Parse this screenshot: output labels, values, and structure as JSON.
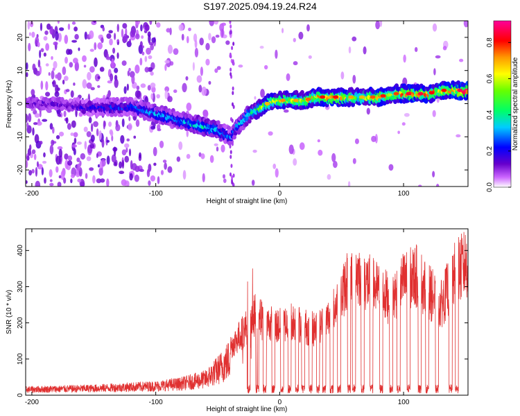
{
  "title": "S197.2025.094.19.24.R24",
  "spectrogram": {
    "xlabel": "Height of straight line (km)",
    "ylabel": "Frequency (Hz)",
    "xlim": [
      -205,
      152
    ],
    "ylim": [
      -25,
      25
    ],
    "xticks": [
      -200,
      -100,
      0,
      100
    ],
    "yticks": [
      -20,
      -10,
      0,
      10,
      20
    ],
    "colorbar": {
      "label": "Normalized spectral amplitude",
      "range": [
        0,
        0.92
      ],
      "ticks": [
        0.0,
        0.2,
        0.4,
        0.6,
        0.8
      ]
    }
  },
  "chart_data": [
    {
      "type": "heatmap",
      "title": "S197.2025.094.19.24.R24",
      "xlabel": "Height of straight line (km)",
      "ylabel": "Frequency (Hz)",
      "xlim": [
        -205,
        152
      ],
      "ylim": [
        -25,
        25
      ],
      "colorbar_label": "Normalized spectral amplitude",
      "colorbar_range": [
        0,
        0.92
      ],
      "ridge": {
        "x": [
          -200,
          -180,
          -160,
          -140,
          -120,
          -100,
          -80,
          -70,
          -60,
          -50,
          -45,
          -40,
          -35,
          -30,
          -25,
          -20,
          -15,
          -10,
          -5,
          0,
          10,
          20,
          30,
          40,
          50,
          60,
          70,
          80,
          90,
          100,
          110,
          120,
          130,
          140,
          150
        ],
        "y": [
          0,
          0,
          -1,
          -1,
          -1,
          -3,
          -5,
          -6,
          -7,
          -8,
          -9,
          -10,
          -7,
          -5,
          -3,
          -2,
          -1,
          0,
          1,
          1,
          1,
          1,
          2,
          2,
          2,
          2,
          2,
          2,
          3,
          3,
          3,
          3,
          4,
          4,
          4
        ],
        "amplitude": [
          0.15,
          0.15,
          0.2,
          0.25,
          0.3,
          0.35,
          0.35,
          0.4,
          0.45,
          0.4,
          0.3,
          0.3,
          0.35,
          0.4,
          0.45,
          0.5,
          0.6,
          0.65,
          0.7,
          0.7,
          0.65,
          0.7,
          0.75,
          0.8,
          0.75,
          0.65,
          0.65,
          0.8,
          0.7,
          0.8,
          0.85,
          0.8,
          0.75,
          0.85,
          0.9
        ]
      }
    },
    {
      "type": "line",
      "xlabel": "Height of straight line (km)",
      "ylabel": "SNR (10 * v/v)",
      "xlim": [
        -205,
        152
      ],
      "ylim": [
        0,
        460
      ],
      "xticks": [
        -200,
        -100,
        0,
        100
      ],
      "yticks": [
        0,
        100,
        200,
        300,
        400
      ],
      "color": "#e03030",
      "envelope": {
        "x": [
          -205,
          -150,
          -100,
          -80,
          -60,
          -50,
          -40,
          -30,
          -20,
          -10,
          0,
          10,
          20,
          30,
          40,
          50,
          55,
          60,
          70,
          80,
          90,
          100,
          110,
          120,
          130,
          140,
          150
        ],
        "y": [
          25,
          30,
          40,
          50,
          70,
          110,
          160,
          210,
          270,
          240,
          230,
          250,
          230,
          220,
          260,
          330,
          400,
          420,
          380,
          350,
          320,
          380,
          400,
          350,
          300,
          400,
          440
        ]
      },
      "drops": [
        -25,
        -18,
        -12,
        -5,
        2,
        8,
        14,
        19,
        25,
        31,
        36,
        42,
        48,
        56,
        60,
        67,
        74,
        82,
        90,
        96,
        104,
        113,
        119,
        127,
        138,
        143
      ]
    }
  ]
}
